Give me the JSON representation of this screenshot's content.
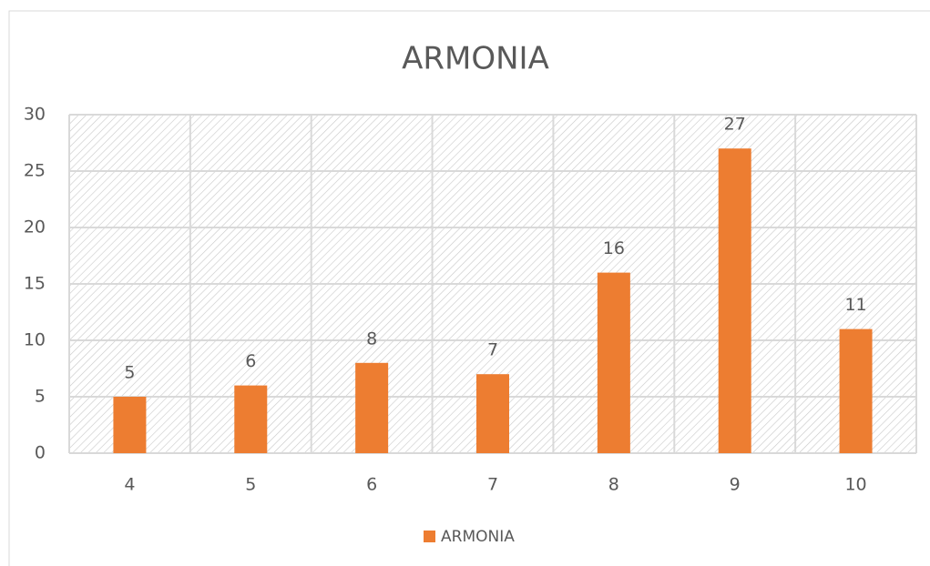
{
  "chart_data": {
    "type": "bar",
    "title": "ARMONIA",
    "categories": [
      "4",
      "5",
      "6",
      "7",
      "8",
      "9",
      "10"
    ],
    "series": [
      {
        "name": "ARMONIA",
        "color": "#ed7d31",
        "values": [
          5,
          6,
          8,
          7,
          16,
          27,
          11
        ]
      }
    ],
    "ylim": [
      0,
      30
    ],
    "yticks": [
      0,
      5,
      10,
      15,
      20,
      25,
      30
    ],
    "grid": true,
    "data_labels": true,
    "legend": "bottom"
  }
}
